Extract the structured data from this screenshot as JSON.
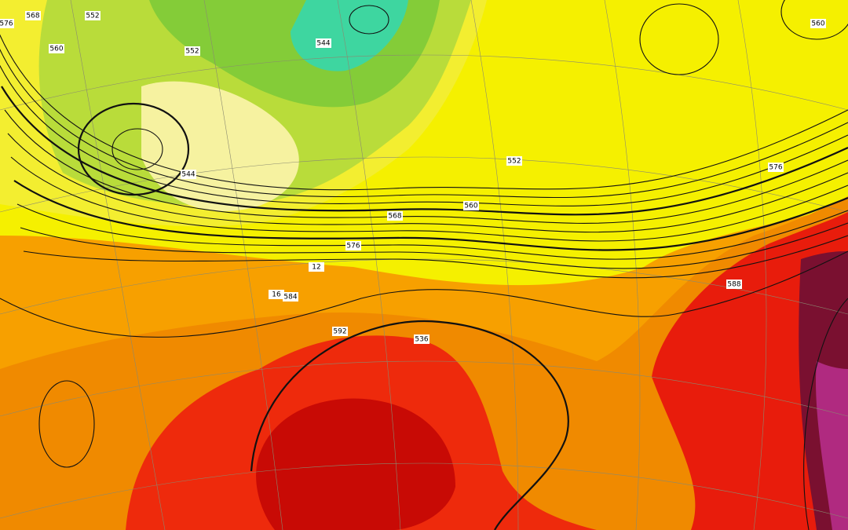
{
  "map": {
    "contour_labels": [
      "576",
      "568",
      "560",
      "552",
      "552",
      "544",
      "544",
      "552",
      "560",
      "568",
      "576",
      "584",
      "592",
      "576",
      "560",
      "588",
      "536",
      "16",
      "12"
    ]
  }
}
